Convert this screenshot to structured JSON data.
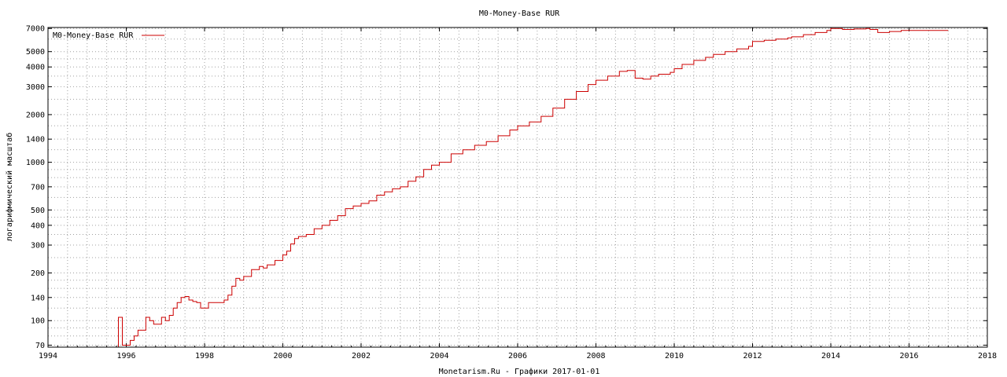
{
  "chart_data": {
    "type": "line",
    "title": "M0-Money-Base RUR",
    "xlabel": "Monetarism.Ru - Графики  2017-01-01",
    "ylabel": "логарифмический масштаб",
    "yscale": "log",
    "xlim": [
      1994,
      2018
    ],
    "ylim": [
      68,
      7100
    ],
    "grid": true,
    "legend_position": "top-left",
    "x_ticks": [
      1994,
      1996,
      1998,
      2000,
      2002,
      2004,
      2006,
      2008,
      2010,
      2012,
      2014,
      2016,
      2018
    ],
    "y_ticks": [
      70,
      100,
      140,
      200,
      300,
      400,
      500,
      700,
      1000,
      1400,
      2000,
      3000,
      4000,
      5000,
      7000
    ],
    "series": [
      {
        "name": "M0-Money-Base RUR",
        "color": "#cc0000",
        "step": true,
        "x": [
          1995.8,
          1995.9,
          1996.0,
          1996.1,
          1996.2,
          1996.3,
          1996.4,
          1996.5,
          1996.6,
          1996.7,
          1996.8,
          1996.9,
          1997.0,
          1997.1,
          1997.2,
          1997.3,
          1997.4,
          1997.5,
          1997.6,
          1997.7,
          1997.8,
          1997.9,
          1998.0,
          1998.1,
          1998.2,
          1998.3,
          1998.4,
          1998.5,
          1998.6,
          1998.7,
          1998.8,
          1998.9,
          1999.0,
          1999.2,
          1999.4,
          1999.5,
          1999.6,
          1999.8,
          2000.0,
          2000.1,
          2000.2,
          2000.3,
          2000.4,
          2000.6,
          2000.8,
          2001.0,
          2001.2,
          2001.4,
          2001.6,
          2001.8,
          2002.0,
          2002.2,
          2002.4,
          2002.6,
          2002.8,
          2003.0,
          2003.2,
          2003.4,
          2003.6,
          2003.8,
          2004.0,
          2004.3,
          2004.6,
          2004.9,
          2005.2,
          2005.5,
          2005.8,
          2006.0,
          2006.3,
          2006.6,
          2006.9,
          2007.2,
          2007.5,
          2007.8,
          2008.0,
          2008.3,
          2008.6,
          2008.8,
          2009.0,
          2009.2,
          2009.4,
          2009.6,
          2009.9,
          2010.0,
          2010.2,
          2010.5,
          2010.8,
          2011.0,
          2011.3,
          2011.6,
          2011.9,
          2012.0,
          2012.3,
          2012.6,
          2012.9,
          2013.0,
          2013.3,
          2013.6,
          2013.9,
          2014.0,
          2014.3,
          2014.6,
          2014.9,
          2015.0,
          2015.2,
          2015.5,
          2015.8,
          2016.0,
          2016.5,
          2017.0
        ],
        "values": [
          105,
          70,
          70,
          75,
          80,
          87,
          87,
          105,
          100,
          95,
          95,
          105,
          100,
          108,
          120,
          130,
          140,
          142,
          135,
          132,
          130,
          120,
          120,
          130,
          130,
          130,
          130,
          135,
          145,
          165,
          185,
          180,
          190,
          210,
          220,
          215,
          225,
          240,
          260,
          275,
          305,
          330,
          340,
          350,
          380,
          400,
          430,
          460,
          510,
          530,
          550,
          570,
          620,
          650,
          680,
          700,
          760,
          810,
          900,
          960,
          1000,
          1130,
          1200,
          1280,
          1350,
          1470,
          1600,
          1700,
          1800,
          1950,
          2200,
          2500,
          2800,
          3100,
          3300,
          3500,
          3750,
          3800,
          3400,
          3350,
          3500,
          3600,
          3700,
          3900,
          4150,
          4400,
          4600,
          4800,
          5000,
          5200,
          5400,
          5800,
          5900,
          6000,
          6100,
          6200,
          6400,
          6600,
          6800,
          7000,
          6900,
          6950,
          7000,
          6900,
          6600,
          6700,
          6800,
          6800,
          6800,
          6800
        ]
      }
    ]
  }
}
